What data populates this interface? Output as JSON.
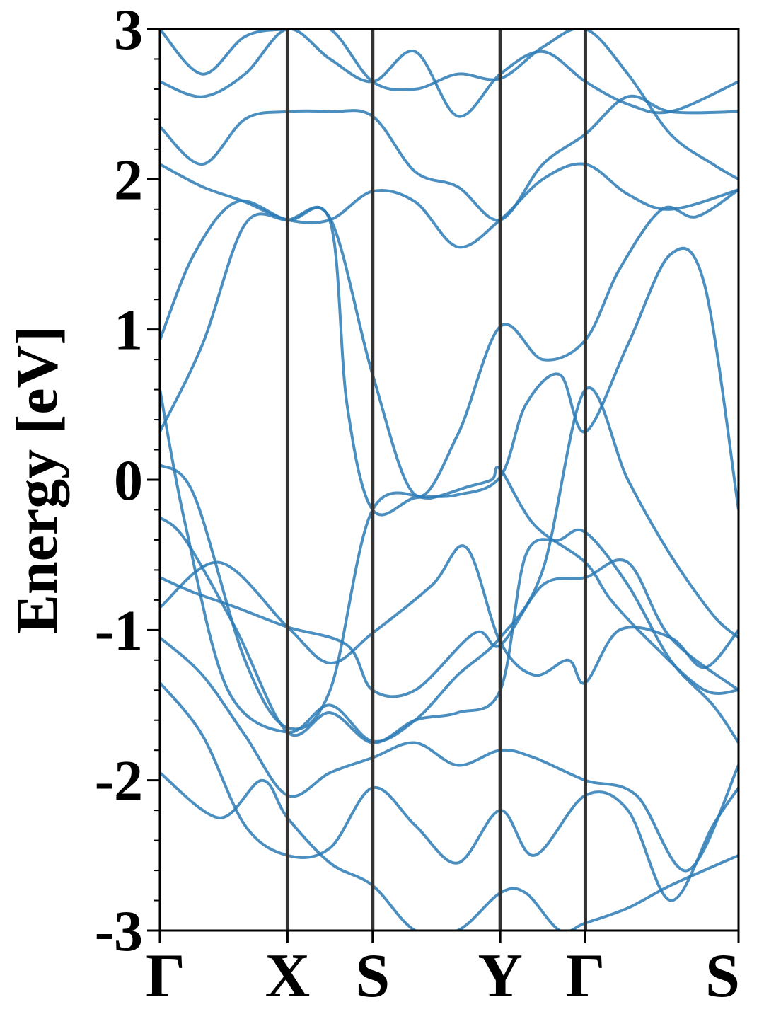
{
  "chart_data": {
    "type": "line",
    "ylabel": "Energy [eV]",
    "ylim": [
      -3,
      3
    ],
    "y_ticks": [
      "-3",
      "-2",
      "-1",
      "0",
      "1",
      "2",
      "3"
    ],
    "kpoint_labels": [
      "Γ",
      "X",
      "S",
      "Y",
      "Γ",
      "S"
    ],
    "xlim": [
      0,
      6.8
    ],
    "kpoint_positions": [
      0,
      1.5,
      2.5,
      4.0,
      5.0,
      6.8
    ],
    "grid": false,
    "legend": "none",
    "colors": {
      "band": "#2c7bb6",
      "kline": "#333333",
      "axis": "#000000"
    },
    "series": [
      {
        "x": [
          0,
          0.7,
          1.5,
          2.0,
          2.5,
          3.2,
          3.6,
          4.0,
          4.4,
          4.8,
          5.0,
          5.4,
          6.0,
          6.4,
          6.8
        ],
        "y": [
          -0.85,
          -0.55,
          -0.98,
          -1.22,
          -1.02,
          -0.7,
          -0.45,
          -1.08,
          -1.3,
          -1.2,
          -1.35,
          -1.0,
          -1.05,
          -1.25,
          -1.0
        ]
      },
      {
        "x": [
          0,
          0.4,
          0.9,
          1.5,
          2.2,
          2.5,
          3.0,
          3.7,
          4.0,
          4.5,
          5.0,
          5.5,
          6.0,
          6.8
        ],
        "y": [
          -0.65,
          -0.75,
          -0.85,
          -0.98,
          -1.1,
          -1.4,
          -1.4,
          -1.02,
          -1.1,
          -0.7,
          -0.65,
          -0.55,
          -1.05,
          -1.4
        ]
      },
      {
        "x": [
          0,
          0.4,
          1.0,
          1.5,
          2.0,
          2.5,
          3.2,
          3.6,
          3.9,
          4.0,
          4.4,
          5.0,
          5.3,
          5.8,
          6.4,
          6.8
        ],
        "y": [
          0.1,
          -0.1,
          -1.2,
          -1.65,
          -1.4,
          -0.2,
          -0.12,
          -0.05,
          0.0,
          0.07,
          -0.3,
          -0.55,
          -0.8,
          -1.1,
          -1.4,
          -1.4
        ]
      },
      {
        "x": [
          0,
          0.3,
          0.9,
          1.5,
          2.0,
          2.5,
          3.0,
          3.5,
          4.0,
          4.3,
          4.7,
          5.0,
          5.5,
          6.0,
          6.5,
          6.8
        ],
        "y": [
          -0.25,
          -0.4,
          -1.0,
          -1.68,
          -1.55,
          -1.75,
          -1.6,
          -1.55,
          -1.4,
          -0.5,
          -0.4,
          -0.35,
          -0.7,
          -1.2,
          -1.5,
          -1.75
        ]
      },
      {
        "x": [
          0,
          0.5,
          1.0,
          1.5,
          2.0,
          2.5,
          3.0,
          3.5,
          4.0,
          4.4,
          5.0,
          5.6,
          6.2,
          6.8
        ],
        "y": [
          -1.05,
          -1.3,
          -1.7,
          -2.1,
          -1.95,
          -1.85,
          -1.75,
          -1.9,
          -1.8,
          -1.85,
          -2.0,
          -2.1,
          -2.6,
          -1.9
        ]
      },
      {
        "x": [
          0,
          0.5,
          1.0,
          1.5,
          2.0,
          2.5,
          3.0,
          3.5,
          4.0,
          4.4,
          5.0,
          5.5,
          6.0,
          6.5,
          6.8
        ],
        "y": [
          -1.35,
          -1.7,
          -2.3,
          -2.5,
          -2.45,
          -2.05,
          -2.3,
          -2.55,
          -2.2,
          -2.5,
          -2.1,
          -2.2,
          -2.8,
          -2.3,
          -2.05
        ]
      },
      {
        "x": [
          0,
          0.7,
          1.2,
          1.5,
          2.0,
          2.5,
          3.0,
          3.5,
          4.0,
          4.3,
          4.7,
          5.0,
          5.5,
          6.0,
          6.8
        ],
        "y": [
          -1.95,
          -2.25,
          -2.0,
          -2.25,
          -2.55,
          -2.7,
          -3.0,
          -3.0,
          -2.75,
          -2.75,
          -3.0,
          -2.95,
          -2.85,
          -2.7,
          -2.5
        ]
      },
      {
        "x": [
          0,
          0.5,
          1.0,
          1.5,
          2.0,
          2.5,
          3.0,
          3.5,
          4.0,
          4.5,
          5.0,
          5.5,
          6.0,
          6.8
        ],
        "y": [
          2.35,
          2.1,
          2.4,
          2.45,
          2.45,
          2.42,
          2.05,
          1.95,
          1.73,
          2.1,
          2.3,
          2.55,
          2.45,
          2.45
        ]
      },
      {
        "x": [
          0,
          0.5,
          1.0,
          1.5,
          2.0,
          2.5,
          3.0,
          3.5,
          4.0,
          4.5,
          5.0,
          5.5,
          6.0,
          6.8
        ],
        "y": [
          2.1,
          1.95,
          1.85,
          1.73,
          1.73,
          1.92,
          1.85,
          1.55,
          1.73,
          2.0,
          2.1,
          1.9,
          1.8,
          1.93
        ]
      },
      {
        "x": [
          0,
          0.4,
          0.9,
          1.5,
          2.0,
          2.5,
          3.0,
          3.5,
          4.0,
          4.5,
          5.0,
          5.4,
          5.9,
          6.3,
          6.8
        ],
        "y": [
          0.93,
          1.5,
          1.85,
          1.73,
          1.74,
          0.7,
          -0.1,
          0.3,
          1.02,
          0.8,
          0.93,
          1.4,
          1.8,
          1.75,
          1.93
        ]
      },
      {
        "x": [
          0,
          0.5,
          1.0,
          1.5,
          2.0,
          2.2,
          2.5,
          3.0,
          3.5,
          4.0,
          4.3,
          4.7,
          5.0,
          5.5,
          6.0,
          6.4,
          6.8
        ],
        "y": [
          0.32,
          0.9,
          1.7,
          1.73,
          1.72,
          0.5,
          -0.2,
          -0.12,
          -0.1,
          0.02,
          0.5,
          0.7,
          0.32,
          0.9,
          1.5,
          1.3,
          -0.2
        ]
      },
      {
        "x": [
          0,
          0.3,
          0.8,
          1.5,
          2.0,
          2.5,
          3.0,
          3.5,
          4.0,
          4.5,
          5.0,
          5.5,
          6.0,
          6.5,
          6.8
        ],
        "y": [
          0.6,
          -0.3,
          -1.4,
          -1.68,
          -1.5,
          -1.74,
          -1.6,
          -1.3,
          -1.05,
          -0.6,
          0.6,
          0.0,
          -0.5,
          -0.9,
          -1.05
        ]
      },
      {
        "x": [
          0,
          0.5,
          1.0,
          1.5,
          2.0,
          2.5,
          3.0,
          3.5,
          4.0,
          4.5,
          5.0,
          5.5,
          6.0,
          6.8
        ],
        "y": [
          2.65,
          2.55,
          2.7,
          3.0,
          2.8,
          2.65,
          2.85,
          2.42,
          2.7,
          2.85,
          2.65,
          2.5,
          2.45,
          2.65
        ]
      },
      {
        "x": [
          0,
          0.5,
          1.0,
          1.5,
          2.0,
          2.5,
          3.0,
          3.5,
          4.0,
          4.5,
          5.0,
          5.5,
          6.0,
          6.5,
          6.8
        ],
        "y": [
          3.0,
          2.7,
          2.95,
          3.0,
          3.0,
          2.65,
          2.6,
          2.7,
          2.67,
          2.88,
          3.0,
          2.7,
          2.3,
          2.1,
          2.0
        ]
      }
    ]
  }
}
